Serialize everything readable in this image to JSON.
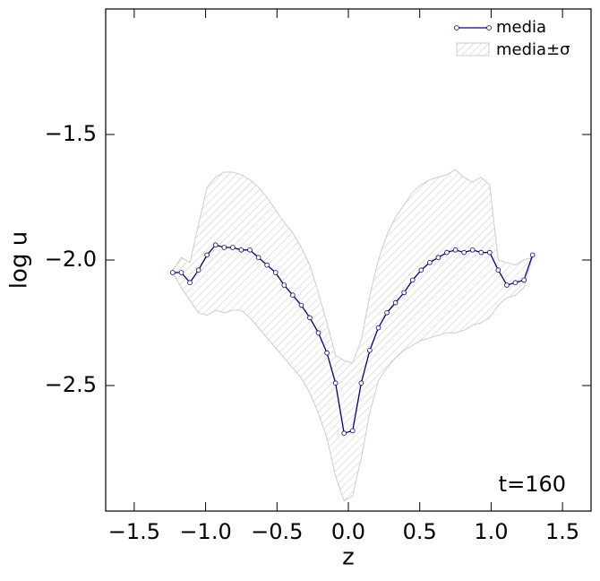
{
  "chart_data": {
    "type": "line",
    "xlabel": "z",
    "ylabel": "log u",
    "annotation": "t=160",
    "x": [
      -1.23,
      -1.17,
      -1.11,
      -1.05,
      -0.99,
      -0.93,
      -0.87,
      -0.81,
      -0.75,
      -0.69,
      -0.63,
      -0.57,
      -0.51,
      -0.45,
      -0.39,
      -0.33,
      -0.27,
      -0.21,
      -0.15,
      -0.09,
      -0.03,
      0.03,
      0.09,
      0.15,
      0.21,
      0.27,
      0.33,
      0.39,
      0.45,
      0.51,
      0.57,
      0.63,
      0.69,
      0.75,
      0.81,
      0.87,
      0.93,
      0.99,
      1.05,
      1.11,
      1.17,
      1.23,
      1.29
    ],
    "series": [
      {
        "name": "media",
        "color": "#00008b",
        "values": [
          -2.05,
          -2.05,
          -2.09,
          -2.04,
          -1.98,
          -1.94,
          -1.95,
          -1.95,
          -1.96,
          -1.96,
          -1.99,
          -2.02,
          -2.05,
          -2.1,
          -2.14,
          -2.18,
          -2.23,
          -2.29,
          -2.37,
          -2.49,
          -2.69,
          -2.68,
          -2.49,
          -2.36,
          -2.27,
          -2.21,
          -2.17,
          -2.13,
          -2.08,
          -2.04,
          -2.01,
          -1.99,
          -1.97,
          -1.96,
          -1.97,
          -1.96,
          -1.97,
          -1.97,
          -2.04,
          -2.1,
          -2.09,
          -2.08,
          -1.98
        ]
      },
      {
        "name": "media±σ",
        "color": "#cccccc",
        "lower": [
          -2.05,
          -2.11,
          -2.16,
          -2.21,
          -2.22,
          -2.2,
          -2.21,
          -2.2,
          -2.2,
          -2.23,
          -2.27,
          -2.31,
          -2.35,
          -2.39,
          -2.43,
          -2.47,
          -2.53,
          -2.61,
          -2.71,
          -2.86,
          -2.96,
          -2.94,
          -2.79,
          -2.61,
          -2.48,
          -2.43,
          -2.39,
          -2.36,
          -2.34,
          -2.32,
          -2.31,
          -2.3,
          -2.29,
          -2.29,
          -2.28,
          -2.26,
          -2.25,
          -2.23,
          -2.18,
          -2.15,
          -2.14,
          -2.11,
          -1.99
        ],
        "upper": [
          -2.04,
          -1.99,
          -2.01,
          -1.86,
          -1.71,
          -1.67,
          -1.65,
          -1.65,
          -1.66,
          -1.68,
          -1.71,
          -1.75,
          -1.8,
          -1.85,
          -1.89,
          -1.95,
          -2.02,
          -2.13,
          -2.25,
          -2.38,
          -2.4,
          -2.41,
          -2.32,
          -2.14,
          -2.0,
          -1.9,
          -1.83,
          -1.78,
          -1.73,
          -1.7,
          -1.68,
          -1.67,
          -1.66,
          -1.64,
          -1.67,
          -1.69,
          -1.67,
          -1.7,
          -2.0,
          -2.01,
          -2.02,
          -2.0,
          -1.99
        ]
      }
    ],
    "xlim": [
      -1.7,
      1.7
    ],
    "xticks": [
      {
        "value": -1.5,
        "label": "−1.5"
      },
      {
        "value": -1.0,
        "label": "−1.0"
      },
      {
        "value": -0.5,
        "label": "−0.5"
      },
      {
        "value": 0,
        "label": "0.0"
      },
      0.5,
      {
        "value": 1.0,
        "label": "1.0"
      },
      1.5
    ],
    "ylim": [
      -3.0,
      -1.0
    ],
    "yticks": [
      {
        "value": -2.5,
        "label": "−2.5"
      },
      {
        "value": -2.0,
        "label": "−2.0"
      },
      {
        "value": -1.5,
        "label": "−1.5"
      }
    ],
    "grid": false,
    "legend": "upper right"
  }
}
